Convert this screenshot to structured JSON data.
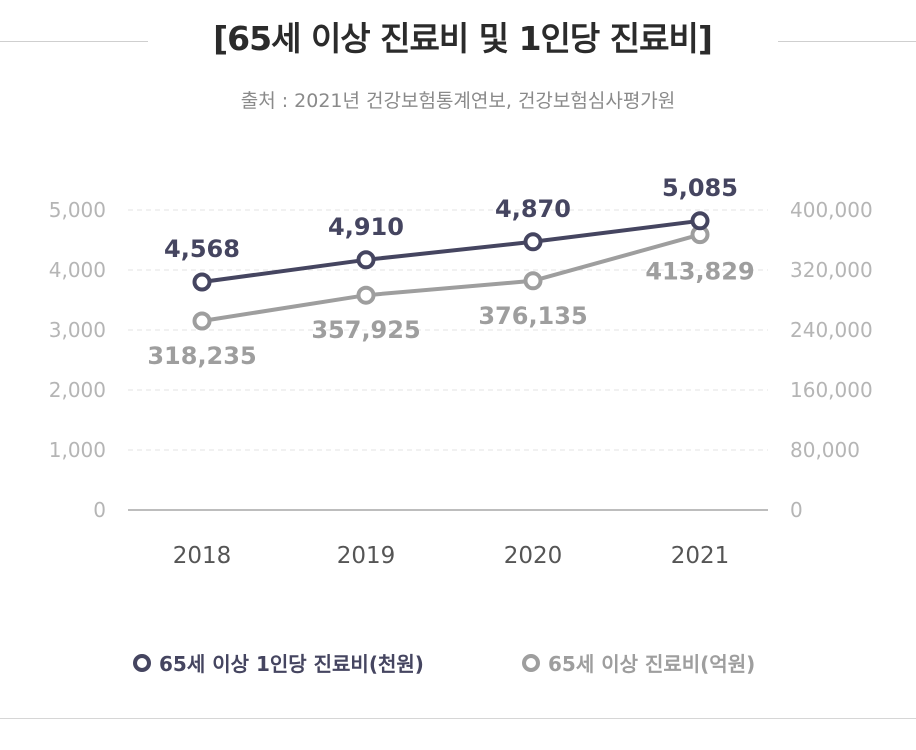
{
  "title": "[65세 이상 진료비 및 1인당 진료비]",
  "source": "출처 : 2021년 건강보험통계연보, 건강보험심사평가원",
  "chart_data": {
    "type": "line",
    "categories": [
      "2018",
      "2019",
      "2020",
      "2021"
    ],
    "y_left": {
      "ticks": [
        "0",
        "1,000",
        "2,000",
        "3,000",
        "4,000",
        "5,000"
      ],
      "min": 0,
      "max": 5000
    },
    "y_right": {
      "ticks": [
        "0",
        "80,000",
        "160,000",
        "240,000",
        "320,000",
        "400,000"
      ],
      "min": 0,
      "max": 400000
    },
    "grid": true,
    "legend_position": "bottom",
    "series": [
      {
        "name": "65세 이상 1인당 진료비(천원)",
        "values": [
          4568,
          4910,
          4870,
          5085
        ],
        "labels": [
          "4,568",
          "4,910",
          "4,870",
          "5,085"
        ],
        "plot_level": [
          3800,
          4170,
          4470,
          4820
        ],
        "color": "#454560"
      },
      {
        "name": "65세 이상 진료비(억원)",
        "values": [
          318235,
          357925,
          376135,
          413829
        ],
        "labels": [
          "318,235",
          "357,925",
          "376,135",
          "413,829"
        ],
        "plot_level": [
          3150,
          3580,
          3820,
          4590
        ],
        "color": "#9e9e9e"
      }
    ]
  }
}
